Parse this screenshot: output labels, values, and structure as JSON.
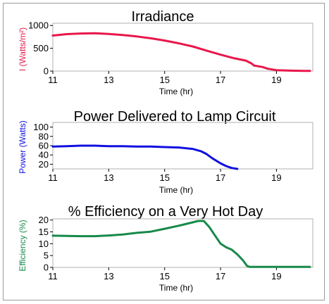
{
  "colors": {
    "irradiance": "#e8174a",
    "power": "#1010e0",
    "efficiency": "#17894a",
    "frame": "#9a9a9a",
    "plot_border": "#b0b0b0"
  },
  "chart_data": [
    {
      "type": "line",
      "title": "Irradiance",
      "xlabel": "Time (hr)",
      "ylabel": "I (Watts/m²)",
      "xlim": [
        11,
        20.3
      ],
      "ylim": [
        0,
        1050
      ],
      "xticks": [
        "11",
        "13",
        "15",
        "17",
        "19"
      ],
      "yticks": [
        "0",
        "500",
        "1000"
      ],
      "grid": false,
      "series": [
        {
          "x": [
            11,
            11.5,
            12,
            12.5,
            13,
            13.5,
            14,
            14.5,
            15,
            15.5,
            16,
            16.5,
            17,
            17.5,
            17.9,
            18,
            18.1,
            18.2,
            18.5,
            18.7,
            19,
            19.5,
            20,
            20.2
          ],
          "y": [
            780,
            810,
            825,
            830,
            815,
            790,
            760,
            720,
            670,
            610,
            540,
            450,
            360,
            280,
            230,
            200,
            170,
            120,
            90,
            50,
            20,
            10,
            5,
            5
          ]
        }
      ]
    },
    {
      "type": "line",
      "title": "Power Delivered to Lamp Circuit",
      "xlabel": "Time (hr)",
      "ylabel": "Power (Watts)",
      "xlim": [
        11,
        20.3
      ],
      "ylim": [
        10,
        110
      ],
      "xticks": [
        "11",
        "13",
        "15",
        "17",
        "19"
      ],
      "yticks": [
        "20",
        "40",
        "60",
        "80",
        "100"
      ],
      "grid": false,
      "series": [
        {
          "x": [
            11,
            11.5,
            12,
            12.5,
            13,
            13.5,
            14,
            14.5,
            15,
            15.5,
            16,
            16.3,
            16.5,
            16.7,
            17,
            17.2,
            17.4,
            17.6
          ],
          "y": [
            58,
            59,
            60,
            60,
            59,
            59,
            58,
            58,
            57,
            56,
            53,
            48,
            42,
            33,
            22,
            16,
            12,
            10
          ]
        }
      ]
    },
    {
      "type": "line",
      "title": "% Efficiency on a Very Hot Day",
      "xlabel": "Time (hr)",
      "ylabel": "Efficiency (%)",
      "xlim": [
        11,
        20.3
      ],
      "ylim": [
        0,
        20.5
      ],
      "xticks": [
        "11",
        "13",
        "15",
        "17",
        "19"
      ],
      "yticks": [
        "0",
        "5",
        "10",
        "15",
        "20"
      ],
      "grid": false,
      "series": [
        {
          "x": [
            11,
            11.5,
            12,
            12.5,
            13,
            13.5,
            14,
            14.5,
            15,
            15.5,
            16,
            16.2,
            16.4,
            16.6,
            16.8,
            17,
            17.2,
            17.4,
            17.6,
            17.8,
            17.95,
            18.05,
            18.5,
            19,
            19.5,
            20.2
          ],
          "y": [
            13.4,
            13.3,
            13.2,
            13.2,
            13.5,
            13.9,
            14.6,
            15.1,
            16.3,
            17.6,
            19,
            19.6,
            19.6,
            17,
            13.5,
            10,
            8.5,
            7.5,
            5.5,
            3,
            0.6,
            0.2,
            0.2,
            0.2,
            0.2,
            0.2
          ]
        }
      ]
    }
  ]
}
